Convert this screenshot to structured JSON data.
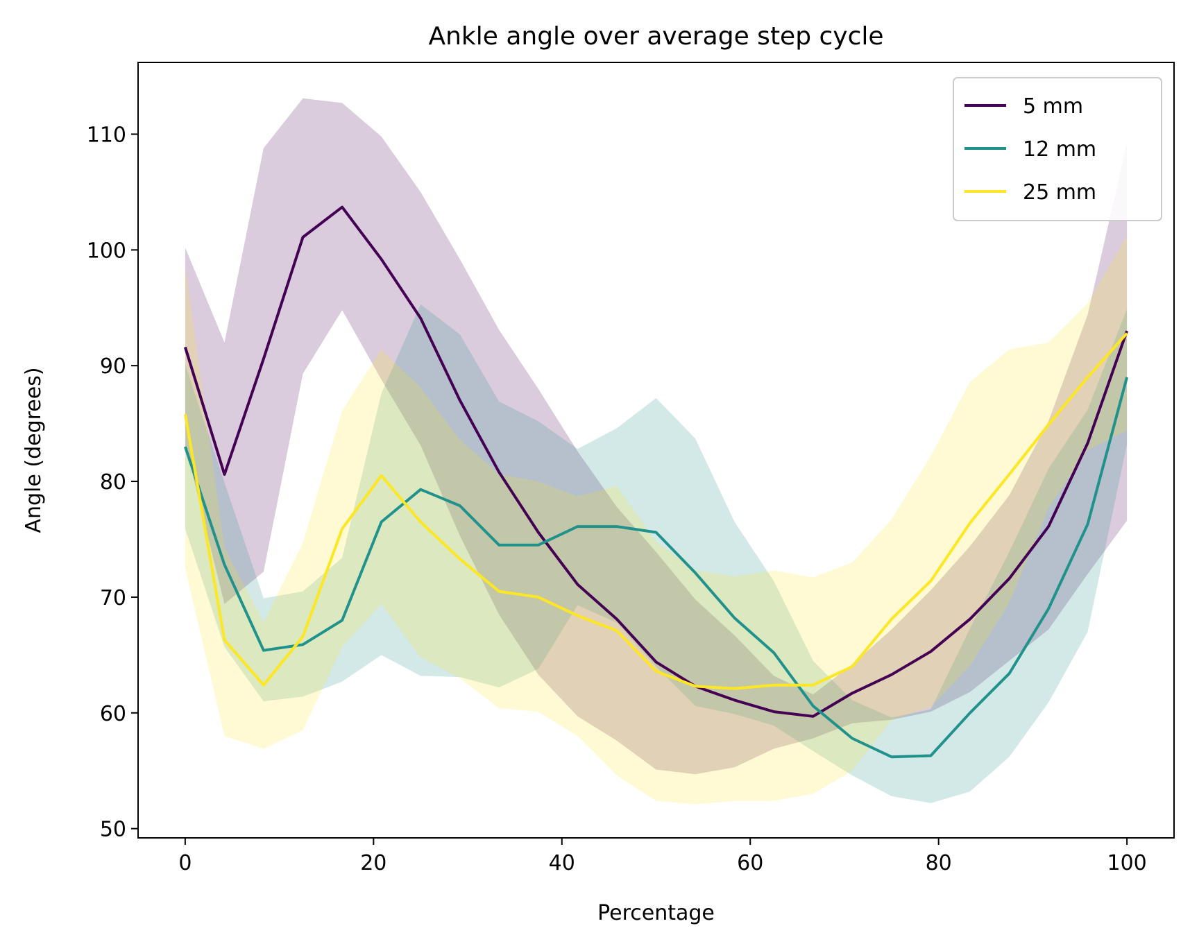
{
  "chart_data": {
    "type": "line",
    "title": "Ankle  angle over average step cycle",
    "xlabel": "Percentage",
    "ylabel": "Angle (degrees)",
    "xlim": [
      -5,
      105
    ],
    "ylim": [
      49.2,
      116.2
    ],
    "xticks": [
      0,
      20,
      40,
      60,
      80,
      100
    ],
    "yticks": [
      50,
      60,
      70,
      80,
      90,
      100,
      110
    ],
    "legend_position": "top-right",
    "grid": false,
    "x": [
      0,
      4.17,
      8.33,
      12.5,
      16.67,
      20.83,
      25,
      29.17,
      33.33,
      37.5,
      41.67,
      45.83,
      50,
      54.17,
      58.33,
      62.5,
      66.67,
      70.83,
      75,
      79.17,
      83.33,
      87.5,
      91.67,
      95.83,
      100
    ],
    "series": [
      {
        "name": "5 mm",
        "color": "#440154",
        "band_opacity": 0.2,
        "values": [
          91.6,
          80.6,
          90.6,
          101.1,
          103.7,
          99.2,
          94.1,
          87,
          80.8,
          75.6,
          71.1,
          68.1,
          64.4,
          62.3,
          61.1,
          60.1,
          59.7,
          61.7,
          63.3,
          65.3,
          68.1,
          71.6,
          76.1,
          83.3,
          93
        ],
        "upper": [
          100.2,
          92,
          108.8,
          113.1,
          112.7,
          109.8,
          105,
          99.2,
          93.1,
          88,
          82.6,
          77.8,
          73.9,
          69.8,
          66.7,
          63.2,
          61.6,
          64.2,
          67.2,
          70.6,
          74.4,
          78.8,
          85.2,
          94.4,
          109.2
        ],
        "lower": [
          83.2,
          69.4,
          72.2,
          89.3,
          94.8,
          88.8,
          83.1,
          75.3,
          68.5,
          63.3,
          59.7,
          57.6,
          55.1,
          54.7,
          55.3,
          56.9,
          57.8,
          59.1,
          59.4,
          60.1,
          61.8,
          64.5,
          67.2,
          72,
          76.6
        ]
      },
      {
        "name": "12 mm",
        "color": "#21918c",
        "band_opacity": 0.2,
        "values": [
          83,
          72.8,
          65.4,
          65.9,
          68,
          76.5,
          79.3,
          77.9,
          74.5,
          74.5,
          76.1,
          76.1,
          75.6,
          72.1,
          68.2,
          65.2,
          60.6,
          57.8,
          56.2,
          56.3,
          60,
          63.4,
          69,
          76.3,
          89
        ],
        "upper": [
          90.1,
          79.9,
          69.9,
          70.5,
          73.4,
          87.6,
          95.3,
          92.7,
          86.9,
          85.2,
          82.8,
          84.6,
          87.2,
          83.7,
          76.5,
          71.4,
          64.5,
          61.1,
          59.6,
          60.3,
          67.3,
          73.9,
          81.1,
          86.2,
          94.9
        ],
        "lower": [
          75.9,
          65.7,
          61,
          61.4,
          62.7,
          65,
          63.2,
          63.1,
          62.2,
          63.8,
          69.3,
          67.8,
          64,
          60.6,
          59.9,
          58.9,
          56.7,
          54.6,
          52.8,
          52.2,
          53.2,
          56.2,
          60.9,
          67,
          83.2
        ]
      },
      {
        "name": "25 mm",
        "color": "#fde725",
        "band_opacity": 0.2,
        "values": [
          85.8,
          66.3,
          62.4,
          66.6,
          75.9,
          80.5,
          76.5,
          73.3,
          70.5,
          70,
          68.4,
          67.1,
          63.6,
          62.3,
          62.1,
          62.4,
          62.4,
          64,
          68.1,
          71.4,
          76.4,
          80.6,
          84.9,
          89,
          92.8
        ],
        "upper": [
          98.6,
          74.3,
          67.8,
          74.7,
          86.1,
          91.4,
          88.1,
          83.6,
          80.6,
          80,
          78.7,
          79.6,
          74.8,
          72.3,
          71.8,
          72.3,
          71.7,
          73,
          76.7,
          82.2,
          88.6,
          91.4,
          92,
          95.4,
          101.2
        ],
        "lower": [
          72.5,
          58,
          56.9,
          58.5,
          65.7,
          69.4,
          64.8,
          63,
          60.4,
          60.1,
          58,
          54.6,
          52.4,
          52.1,
          52.4,
          52.4,
          53,
          55,
          59.4,
          60.5,
          64.1,
          69.5,
          77.7,
          82.7,
          84.4
        ]
      }
    ]
  }
}
